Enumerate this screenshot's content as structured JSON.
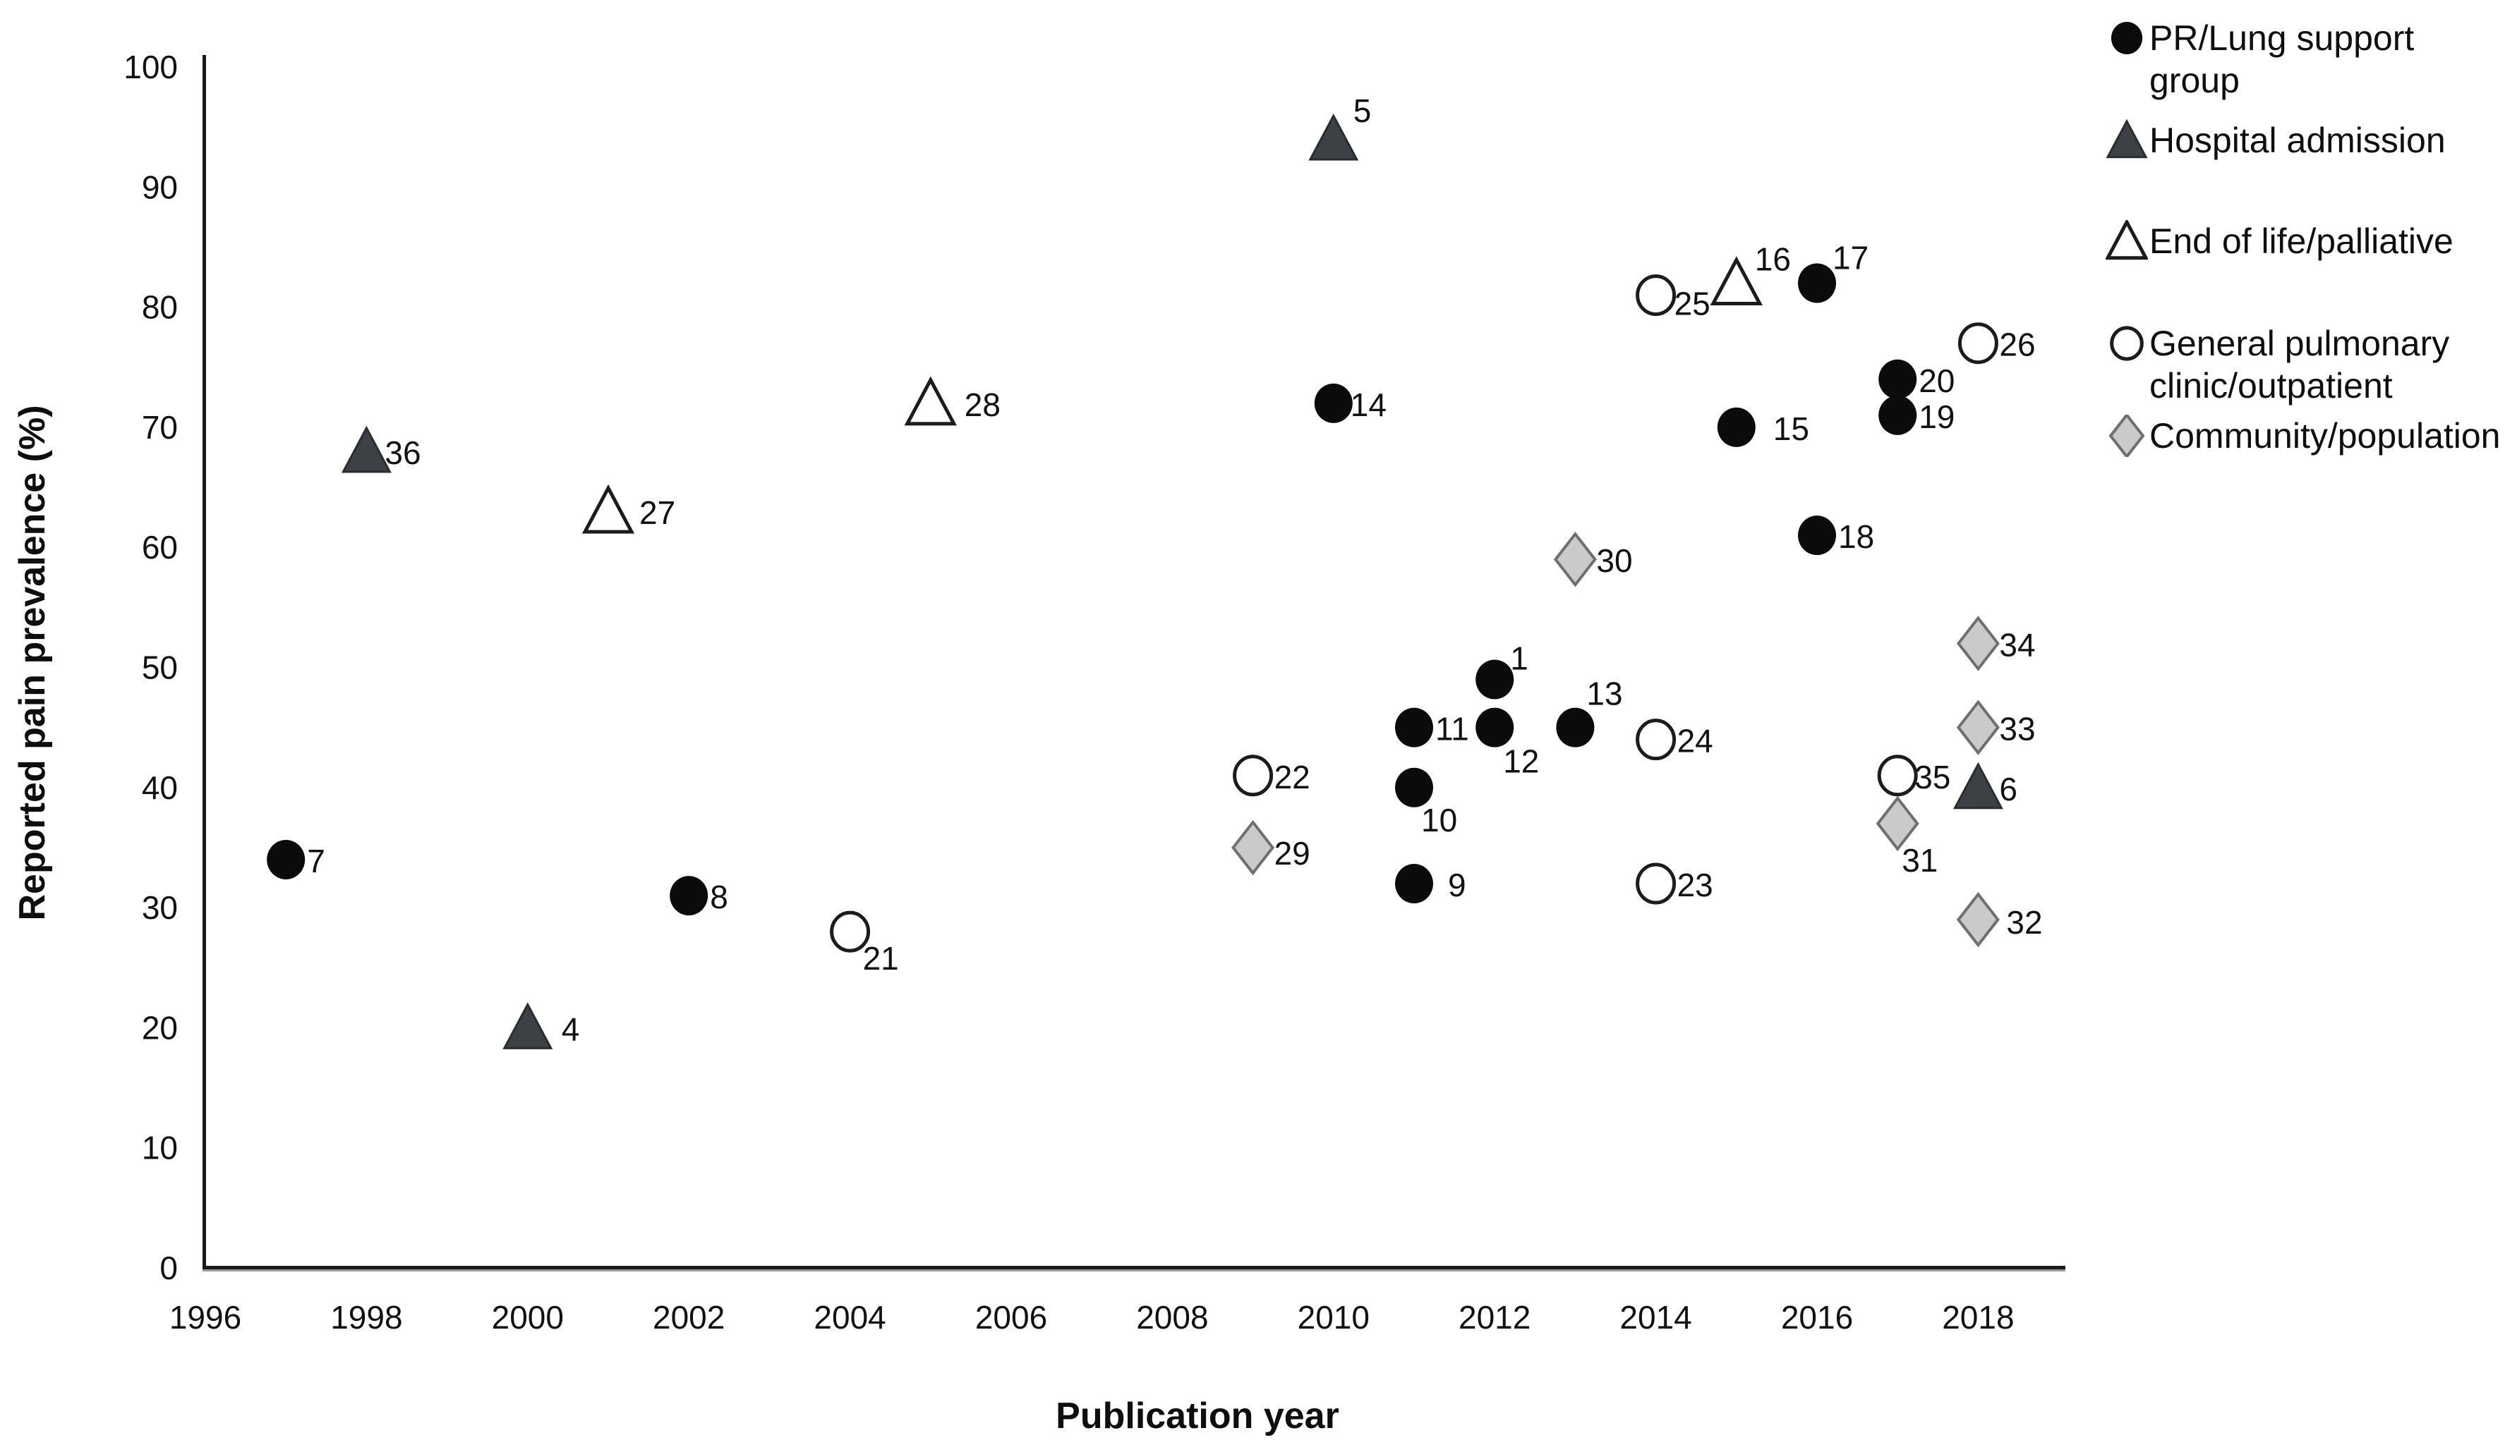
{
  "figure": {
    "background": "#ffffff",
    "text_color": "#0e0e0e",
    "colors": {
      "filled_marker": "#0b0b0b",
      "dark_triangle_fill": "#3d4045",
      "dark_triangle_stroke": "#2a2d30",
      "open_marker_stroke": "#1c1c1c",
      "diamond_fill": "#c9cacb",
      "diamond_stroke": "#6f6f6f",
      "axis_line": "#1a1a1a",
      "axis_shadow": "#9a9a9a"
    }
  },
  "chart_data": {
    "type": "scatter",
    "title": "",
    "xlabel": "Publication year",
    "ylabel": "Reported pain prevalence (%)",
    "xlim": [
      1996,
      2019
    ],
    "ylim": [
      0,
      100
    ],
    "grid": false,
    "legend_position": "right",
    "x_ticks": [
      1996,
      1998,
      2000,
      2002,
      2004,
      2006,
      2008,
      2010,
      2012,
      2014,
      2016,
      2018
    ],
    "y_ticks": [
      0,
      10,
      20,
      30,
      40,
      50,
      60,
      70,
      80,
      90,
      100
    ],
    "series": [
      {
        "name": "PR/Lung support group",
        "marker": "filled-circle",
        "points": [
          {
            "label": "1",
            "year": 2012,
            "value": 49,
            "offset": [
              22,
              -30
            ]
          },
          {
            "label": "7",
            "year": 1997,
            "value": 34
          },
          {
            "label": "8",
            "year": 2002,
            "value": 31
          },
          {
            "label": "9",
            "year": 2011,
            "value": 32,
            "offset": [
              48,
              2
            ]
          },
          {
            "label": "10",
            "year": 2011,
            "value": 40,
            "offset": [
              10,
              46
            ]
          },
          {
            "label": "11",
            "year": 2011,
            "value": 45
          },
          {
            "label": "12",
            "year": 2012,
            "value": 45,
            "offset": [
              12,
              48
            ]
          },
          {
            "label": "13",
            "year": 2013,
            "value": 45,
            "offset": [
              16,
              -48
            ]
          },
          {
            "label": "14",
            "year": 2010,
            "value": 72,
            "offset": [
              24,
              2
            ]
          },
          {
            "label": "15",
            "year": 2015,
            "value": 70,
            "offset": [
              52,
              2
            ]
          },
          {
            "label": "17",
            "year": 2016,
            "value": 82,
            "offset": [
              22,
              -36
            ]
          },
          {
            "label": "18",
            "year": 2016,
            "value": 61
          },
          {
            "label": "19",
            "year": 2017,
            "value": 71
          },
          {
            "label": "20",
            "year": 2017,
            "value": 74
          }
        ]
      },
      {
        "name": "Hospital admission",
        "marker": "filled-triangle",
        "points": [
          {
            "label": "4",
            "year": 2000,
            "value": 20,
            "offset": [
              48,
              2
            ]
          },
          {
            "label": "5",
            "year": 2010,
            "value": 94,
            "offset": [
              28,
              -40
            ]
          },
          {
            "label": "6",
            "year": 2018,
            "value": 40
          },
          {
            "label": "36",
            "year": 1998,
            "value": 68,
            "offset": [
              26,
              2
            ]
          }
        ]
      },
      {
        "name": "End of life/palliative",
        "marker": "open-triangle",
        "points": [
          {
            "label": "16",
            "year": 2015,
            "value": 82,
            "offset": [
              26,
              -34
            ]
          },
          {
            "label": "27",
            "year": 2001,
            "value": 63,
            "offset": [
              44,
              2
            ]
          },
          {
            "label": "28",
            "year": 2005,
            "value": 72,
            "offset": [
              48,
              2
            ]
          }
        ]
      },
      {
        "name": "General pulmonary clinic/outpatient",
        "marker": "open-circle",
        "points": [
          {
            "label": "21",
            "year": 2004,
            "value": 28,
            "offset": [
              18,
              38
            ]
          },
          {
            "label": "22",
            "year": 2009,
            "value": 41
          },
          {
            "label": "23",
            "year": 2014,
            "value": 32
          },
          {
            "label": "24",
            "year": 2014,
            "value": 44
          },
          {
            "label": "25",
            "year": 2014,
            "value": 81,
            "offset": [
              26,
              12
            ]
          },
          {
            "label": "26",
            "year": 2018,
            "value": 77
          },
          {
            "label": "35",
            "year": 2017,
            "value": 41,
            "offset": [
              24,
              2
            ]
          }
        ]
      },
      {
        "name": "Community/population",
        "marker": "diamond",
        "points": [
          {
            "label": "29",
            "year": 2009,
            "value": 35,
            "offset": [
              30,
              8
            ]
          },
          {
            "label": "30",
            "year": 2013,
            "value": 59
          },
          {
            "label": "31",
            "year": 2017,
            "value": 37,
            "offset": [
              6,
              52
            ]
          },
          {
            "label": "32",
            "year": 2018,
            "value": 29,
            "offset": [
              40,
              4
            ]
          },
          {
            "label": "33",
            "year": 2018,
            "value": 45
          },
          {
            "label": "34",
            "year": 2018,
            "value": 52
          }
        ]
      }
    ]
  },
  "legend": {
    "items": [
      {
        "name": "pr-lung-support-group",
        "marker": "filled-circle",
        "label": "PR/Lung support group"
      },
      {
        "name": "hospital-admission",
        "marker": "filled-triangle",
        "label": "Hospital admission"
      },
      {
        "name": "end-of-life-palliative",
        "marker": "open-triangle",
        "label": "End of life/palliative"
      },
      {
        "name": "general-pulmonary-clinic-outpatient",
        "marker": "open-circle",
        "label": "General pulmonary clinic/outpatient"
      },
      {
        "name": "community-population",
        "marker": "diamond",
        "label": "Community/population"
      }
    ]
  }
}
